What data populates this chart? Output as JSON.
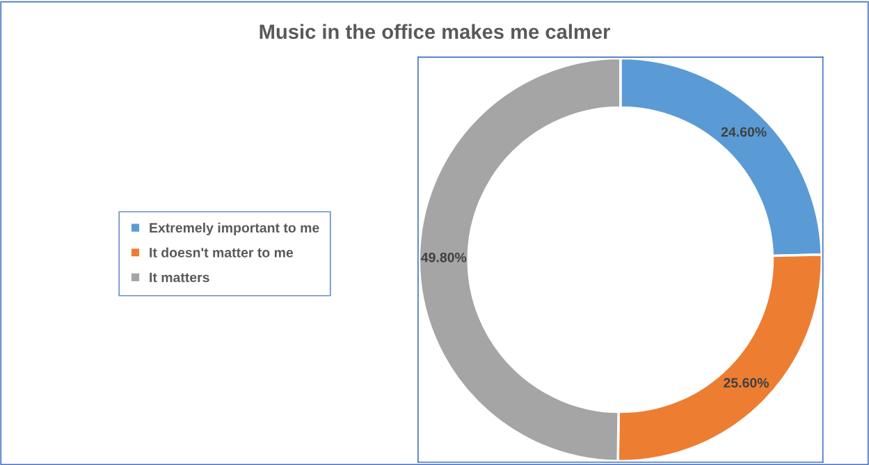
{
  "chart_data": {
    "type": "donut",
    "title": "Music in the office makes me calmer",
    "categories": [
      "Extremely important to me",
      "It doesn't matter to me",
      "It matters"
    ],
    "values": [
      24.6,
      25.6,
      49.8
    ],
    "colors": [
      "#5b9bd5",
      "#ed7d31",
      "#a5a5a5"
    ],
    "value_labels": [
      "24.60%",
      "25.60%",
      "49.80%"
    ],
    "legend": "left"
  }
}
